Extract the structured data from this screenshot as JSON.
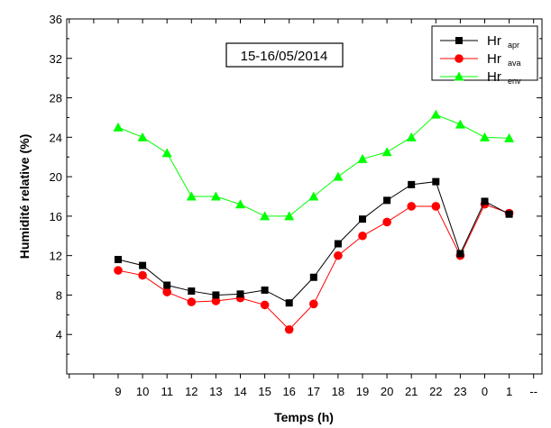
{
  "chart_data": {
    "type": "line",
    "title": "",
    "xlabel": "Temps (h)",
    "ylabel": "Humidité relative (%)",
    "annotation": "15-16/05/2014",
    "categories": [
      "9",
      "10",
      "11",
      "12",
      "13",
      "14",
      "15",
      "16",
      "17",
      "18",
      "19",
      "20",
      "21",
      "22",
      "23",
      "0",
      "1"
    ],
    "trailing_tick_label": "--",
    "ylim": [
      0,
      36
    ],
    "yticks": [
      4,
      8,
      12,
      16,
      20,
      24,
      28,
      32,
      36
    ],
    "legend_position": "top-right",
    "grid": false,
    "series": [
      {
        "name": "Hr",
        "subscript": "apr",
        "color": "#000000",
        "marker": "square",
        "values": [
          11.6,
          11.0,
          9.0,
          8.4,
          8.0,
          8.1,
          8.5,
          7.2,
          9.8,
          13.2,
          15.7,
          17.6,
          19.2,
          19.5,
          12.2,
          17.5,
          16.2
        ]
      },
      {
        "name": "Hr",
        "subscript": "ava",
        "color": "#ff0000",
        "marker": "circle",
        "values": [
          10.5,
          10.0,
          8.3,
          7.3,
          7.4,
          7.7,
          7.0,
          4.5,
          7.1,
          12.0,
          14.0,
          15.4,
          17.0,
          17.0,
          12.0,
          17.2,
          16.3
        ]
      },
      {
        "name": "Hr",
        "subscript": "env",
        "color": "#00ff00",
        "marker": "triangle",
        "values": [
          25.0,
          24.0,
          22.4,
          18.0,
          18.0,
          17.2,
          16.0,
          16.0,
          18.0,
          20.0,
          21.8,
          22.5,
          24.0,
          26.3,
          25.3,
          24.0,
          23.9
        ]
      }
    ]
  }
}
